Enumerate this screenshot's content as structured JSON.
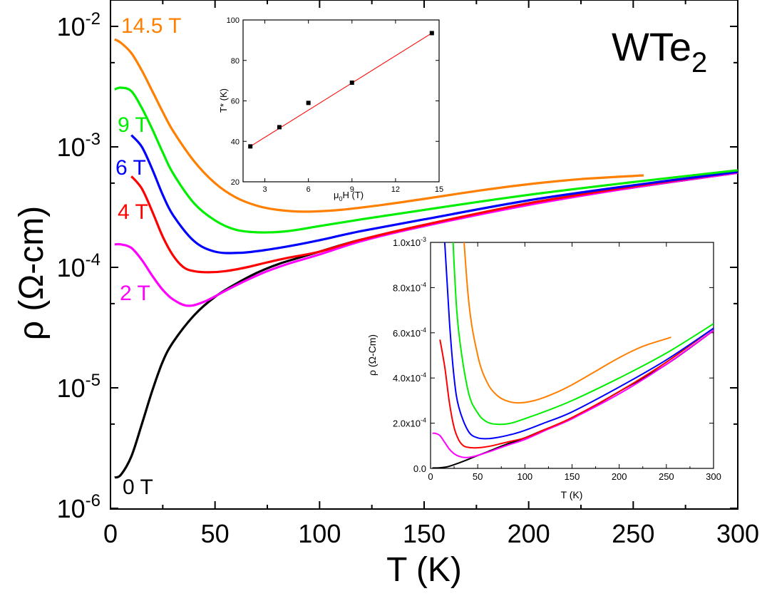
{
  "chart_data": [
    {
      "type": "line",
      "title": "WTe2",
      "xlabel": "T (K)",
      "ylabel": "ρ (Ω-cm)",
      "xlim": [
        0,
        300
      ],
      "ylim": [
        1e-06,
        0.015
      ],
      "y_scale": "log",
      "grid": false,
      "x_ticks": [
        "0",
        "50",
        "100",
        "150",
        "200",
        "250",
        "300"
      ],
      "y_ticks": [
        "10-6",
        "10-5",
        "10-4",
        "10-3",
        "10-2"
      ],
      "series": [
        {
          "name": "0 T",
          "color": "#000000",
          "x": [
            2,
            5,
            10,
            15,
            20,
            25,
            30,
            40,
            50,
            60,
            70,
            80,
            90,
            100,
            120,
            150,
            200,
            250,
            300
          ],
          "y": [
            1.8e-06,
            1.9e-06,
            2.7e-06,
            5e-06,
            9.5e-06,
            1.65e-05,
            2.4e-05,
            4e-05,
            5.7e-05,
            7.3e-05,
            9e-05,
            0.000106,
            0.00012,
            0.000135,
            0.00017,
            0.00022,
            0.00034,
            0.00046,
            0.00061
          ]
        },
        {
          "name": "2 T",
          "color": "#ff00ff",
          "x": [
            2,
            5,
            10,
            15,
            20,
            25,
            30,
            37,
            45,
            55,
            65,
            75,
            85,
            100,
            120,
            150,
            200,
            250,
            300
          ],
          "y": [
            0.000155,
            0.000155,
            0.000145,
            0.000115,
            8.5e-05,
            6.5e-05,
            5.4e-05,
            4.8e-05,
            5.2e-05,
            6.4e-05,
            7.8e-05,
            9.3e-05,
            0.000107,
            0.000128,
            0.000165,
            0.00022,
            0.00033,
            0.00046,
            0.00061
          ]
        },
        {
          "name": "4 T",
          "color": "#ff0000",
          "x": [
            10,
            15,
            20,
            25,
            30,
            35,
            40,
            47,
            55,
            65,
            75,
            85,
            100,
            120,
            150,
            200,
            250,
            300
          ],
          "y": [
            0.00057,
            0.00045,
            0.00029,
            0.00018,
            0.000125,
            0.0001,
            9.3e-05,
            9.1e-05,
            9.3e-05,
            0.0001,
            0.00011,
            0.00012,
            0.000135,
            0.00017,
            0.000225,
            0.00034,
            0.00047,
            0.00062
          ]
        },
        {
          "name": "6 T",
          "color": "#0000ff",
          "x": [
            10,
            15,
            20,
            25,
            30,
            40,
            50,
            62,
            75,
            90,
            100,
            120,
            150,
            200,
            250,
            300
          ],
          "y": [
            0.00125,
            0.001,
            0.00065,
            0.0004,
            0.00027,
            0.000165,
            0.000135,
            0.000132,
            0.00014,
            0.000155,
            0.000168,
            0.0002,
            0.00025,
            0.00036,
            0.00048,
            0.00062
          ]
        },
        {
          "name": "9 T",
          "color": "#00ee00",
          "x": [
            2,
            5,
            10,
            15,
            20,
            25,
            30,
            40,
            50,
            60,
            72,
            85,
            100,
            120,
            150,
            200,
            250,
            300
          ],
          "y": [
            0.003,
            0.0031,
            0.0029,
            0.0021,
            0.0014,
            0.0009,
            0.0006,
            0.00034,
            0.000245,
            0.000205,
            0.000195,
            0.0002,
            0.00022,
            0.00025,
            0.0003,
            0.0004,
            0.00051,
            0.00064
          ]
        },
        {
          "name": "14.5 T",
          "color": "#ff7f00",
          "x": [
            2,
            5,
            10,
            15,
            20,
            25,
            30,
            40,
            50,
            60,
            70,
            80,
            93,
            110,
            130,
            150,
            175,
            200,
            225,
            255
          ],
          "y": [
            0.0078,
            0.0073,
            0.006,
            0.0043,
            0.0029,
            0.00195,
            0.00135,
            0.00076,
            0.0005,
            0.00038,
            0.000325,
            0.0003,
            0.00029,
            0.0003,
            0.00033,
            0.00037,
            0.00043,
            0.00049,
            0.00054,
            0.00058
          ]
        }
      ],
      "annotations": [
        "14.5 T",
        "9 T",
        "6 T",
        "4 T",
        "2 T",
        "0 T"
      ]
    },
    {
      "type": "scatter",
      "xlabel": "μ0H (T)",
      "ylabel": "T* (K)",
      "xlim": [
        1.5,
        15
      ],
      "ylim": [
        20,
        100
      ],
      "x_ticks": [
        "3",
        "6",
        "9",
        "12",
        "15"
      ],
      "y_ticks": [
        "20",
        "40",
        "60",
        "80",
        "100"
      ],
      "points": {
        "x": [
          2,
          4,
          6,
          9,
          14.5
        ],
        "y": [
          37.5,
          47,
          59,
          69,
          93.5
        ]
      },
      "fit_line": {
        "color": "#ff0000",
        "x": [
          2,
          14.5
        ],
        "y": [
          37.5,
          93.5
        ]
      }
    },
    {
      "type": "line",
      "xlabel": "T (K)",
      "ylabel": "ρ (Ω-Cm)",
      "xlim": [
        0,
        300
      ],
      "ylim": [
        0,
        0.001
      ],
      "x_ticks": [
        "0",
        "50",
        "100",
        "150",
        "200",
        "250",
        "300"
      ],
      "y_ticks": [
        "0.0",
        "2.0x10-4",
        "4.0x10-4",
        "6.0x10-4",
        "8.0x10-4",
        "1.0x10-3"
      ],
      "series_source": "same curves as main panel, linear scale"
    }
  ],
  "labels": {
    "title_main": "WTe",
    "title_sub": "2",
    "field_145": "14.5 T",
    "field_9": "9 T",
    "field_6": "6 T",
    "field_4": "4 T",
    "field_2": "2 T",
    "field_0": "0 T",
    "x_axis": "T (K)",
    "y_axis": "ρ (Ω-cm)",
    "inset1_x_axis_mu": "μ",
    "inset1_x_axis_sub": "0",
    "inset1_x_axis_rest": "H (T)",
    "inset1_y_axis": "T* (K)",
    "inset2_x_axis": "T (K)",
    "inset2_y_axis": "ρ (Ω-Cm)"
  }
}
